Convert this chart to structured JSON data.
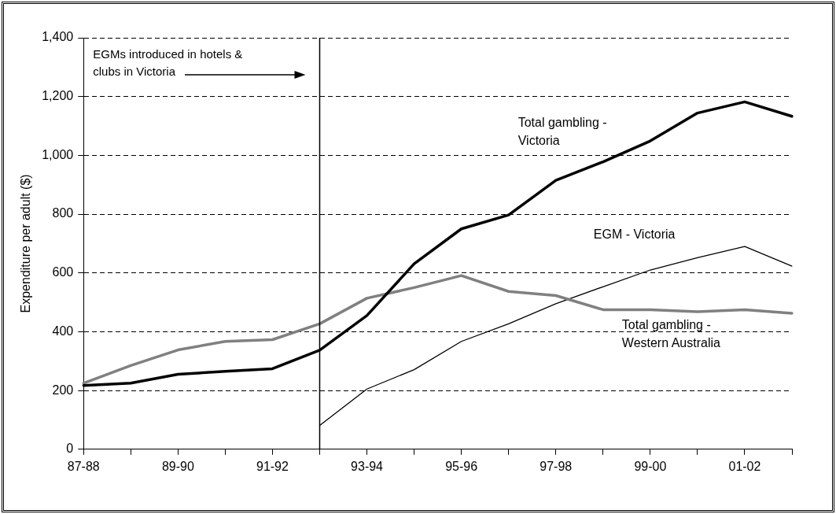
{
  "chart_data": {
    "type": "line",
    "ylabel": "Expenditure per adult ($)",
    "categories": [
      "87-88",
      null,
      "89-90",
      null,
      "91-92",
      null,
      "93-94",
      null,
      "95-96",
      null,
      "97-98",
      null,
      "99-00",
      null,
      "01-02",
      null
    ],
    "series": [
      {
        "name": "Total gambling - Victoria",
        "color": "#000000",
        "values": [
          217,
          225,
          255,
          265,
          274,
          337,
          455,
          631,
          750,
          797,
          915,
          978,
          1049,
          1144,
          1182,
          1133
        ]
      },
      {
        "name": "Total gambling - Western Australia",
        "color": "#808080",
        "values": [
          225,
          285,
          338,
          367,
          373,
          427,
          514,
          550,
          591,
          537,
          523,
          475,
          475,
          468,
          475,
          463
        ]
      },
      {
        "name": "EGM - Victoria",
        "color": "#000000",
        "values": [
          null,
          null,
          null,
          null,
          null,
          81,
          205,
          271,
          367,
          427,
          495,
          553,
          610,
          652,
          690,
          623
        ]
      }
    ],
    "ylim": [
      0,
      1400
    ],
    "yticks": [
      0,
      200,
      400,
      600,
      800,
      {
        "value": 1000,
        "label": "1,000"
      },
      {
        "value": 1200,
        "label": "1,200"
      },
      {
        "value": 1400,
        "label": "1,400"
      }
    ],
    "grid": "y",
    "legend": false,
    "annotations": [
      "EGMs introduced in hotels & clubs in Victoria"
    ]
  }
}
